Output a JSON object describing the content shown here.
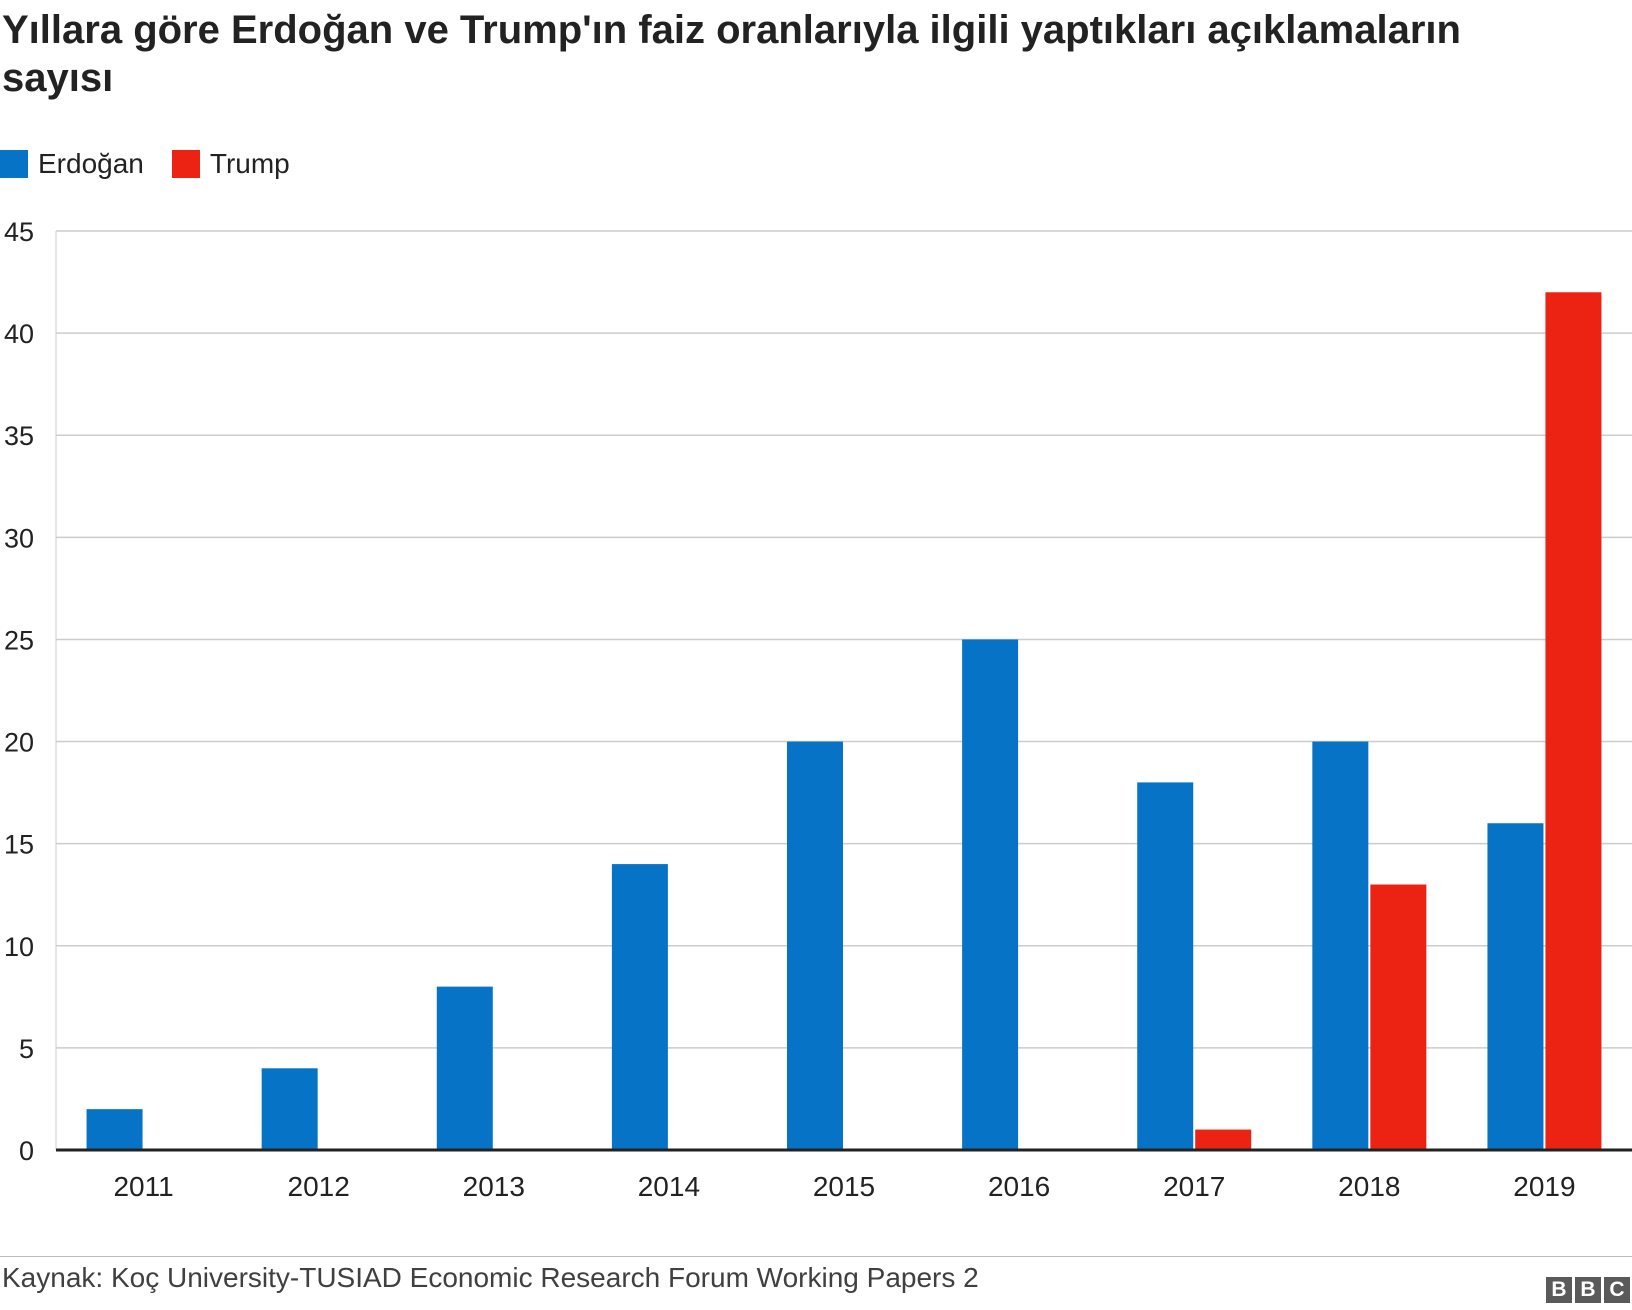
{
  "title": "Yıllara göre Erdoğan ve Trump'ın faiz oranlarıyla ilgili yaptıkları açıklamaların sayısı",
  "legend": [
    {
      "name": "Erdoğan",
      "color": "#0773c6"
    },
    {
      "name": "Trump",
      "color": "#ec2212"
    }
  ],
  "chart_data": {
    "type": "bar",
    "categories": [
      "2011",
      "2012",
      "2013",
      "2014",
      "2015",
      "2016",
      "2017",
      "2018",
      "2019"
    ],
    "series": [
      {
        "name": "Erdoğan",
        "color": "#0773c6",
        "values": [
          2,
          4,
          8,
          14,
          20,
          25,
          18,
          20,
          16
        ]
      },
      {
        "name": "Trump",
        "color": "#ec2212",
        "values": [
          0,
          0,
          0,
          0,
          0,
          0,
          1,
          13,
          42
        ]
      }
    ],
    "yticks": [
      0,
      5,
      10,
      15,
      20,
      25,
      30,
      35,
      40,
      45
    ],
    "ylim": [
      0,
      45
    ],
    "grid": true,
    "legend_position": "top-left"
  },
  "footer": {
    "source": "Kaynak: Koç University-TUSIAD Economic Research Forum Working Papers 2",
    "logo": [
      "B",
      "B",
      "C"
    ]
  }
}
